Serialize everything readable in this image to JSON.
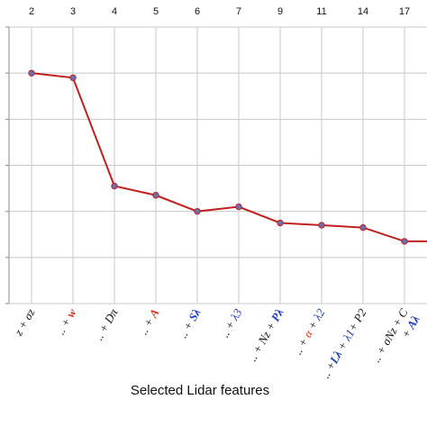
{
  "chart_data": {
    "type": "line",
    "xlabel": "Selected Lidar features",
    "top_tick_labels": [
      "2",
      "3",
      "4",
      "5",
      "6",
      "7",
      "9",
      "11",
      "14",
      "17"
    ],
    "categories": [
      "..z + σz",
      ".. + w",
      ".. + Dπ",
      ".. + A",
      ".. + Sλ",
      ".. + λ3",
      ".. + Nz + Pλ",
      ".. + α + λ2",
      ".. +Lλ + λ1+ P2",
      ".. + σNz + C + Aλ"
    ],
    "category_parts": [
      [
        {
          "t": "z + σz",
          "c": "#111111"
        }
      ],
      [
        {
          "t": ".. + ",
          "c": "#111111"
        },
        {
          "t": "w",
          "c": "#d0361c",
          "b": true
        }
      ],
      [
        {
          "t": ".. + Dπ",
          "c": "#111111"
        }
      ],
      [
        {
          "t": ".. + ",
          "c": "#111111"
        },
        {
          "t": "A",
          "c": "#d0361c",
          "b": true
        }
      ],
      [
        {
          "t": ".. + ",
          "c": "#111111"
        },
        {
          "t": "Sλ",
          "c": "#1f3fc4",
          "b": true
        }
      ],
      [
        {
          "t": ".. + ",
          "c": "#111111"
        },
        {
          "t": "λ3",
          "c": "#1f3fc4"
        }
      ],
      [
        {
          "t": ".. + Nz + ",
          "c": "#111111"
        },
        {
          "t": "Pλ",
          "c": "#1f3fc4",
          "b": true
        }
      ],
      [
        {
          "t": ".. + ",
          "c": "#111111"
        },
        {
          "t": "α",
          "c": "#d0361c"
        },
        {
          "t": " + ",
          "c": "#111111"
        },
        {
          "t": "λ2",
          "c": "#1f3fc4"
        }
      ],
      [
        {
          "t": ".. +",
          "c": "#111111"
        },
        {
          "t": "Lλ",
          "c": "#1f3fc4",
          "b": true
        },
        {
          "t": " + ",
          "c": "#111111"
        },
        {
          "t": "λ1",
          "c": "#1f3fc4"
        },
        {
          "t": "+ P2",
          "c": "#111111"
        }
      ],
      [
        {
          "t": ".. + σNz + C",
          "c": "#111111"
        },
        {
          "t": "+ ",
          "c": "#111111",
          "line2": true
        },
        {
          "t": "Aλ",
          "c": "#1f3fc4",
          "b": true,
          "line2": true
        }
      ]
    ],
    "values": [
      5.0,
      4.9,
      2.55,
      2.35,
      2.0,
      2.1,
      1.75,
      1.7,
      1.65,
      1.35
    ],
    "ylim": [
      0,
      6
    ],
    "grid": true,
    "colors": {
      "line": "#c0211f",
      "marker": "#6a6fb0",
      "grid": "#c8c8c8"
    }
  }
}
